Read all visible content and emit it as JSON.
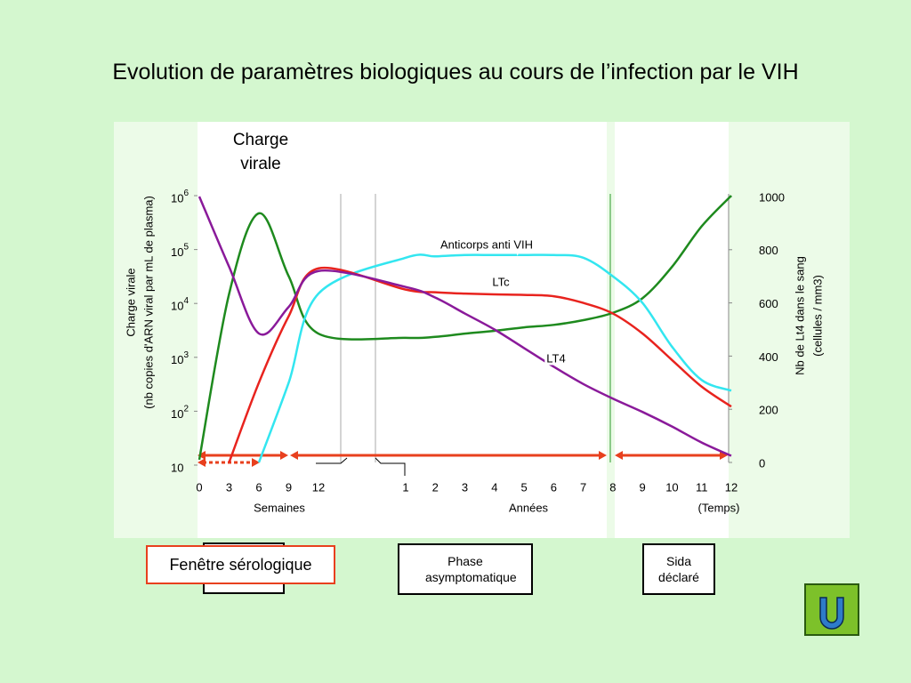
{
  "chart_data": {
    "type": "line",
    "title": "Evolution de paramètres biologiques au cours de l’infection par le VIH",
    "categories": [
      "0",
      "3",
      "6",
      "9",
      "12",
      "1",
      "2",
      "3",
      "4",
      "5",
      "6",
      "7",
      "8",
      "9",
      "10",
      "11",
      "12"
    ],
    "x_groups": [
      "Semaines",
      "Années",
      "(Temps)"
    ],
    "ylabel": [
      "Charge virale",
      "(nb copies d'ARN viral par mL de plasma)"
    ],
    "y2label": [
      "Nb de Lt4 dans le sang",
      "(cellules / mm3)"
    ],
    "log_y": true,
    "ylim": [
      10,
      1000000
    ],
    "yticks": [
      10,
      {
        "value": 100,
        "label": "10",
        "exponent": "2"
      },
      {
        "value": 1000,
        "label": "10",
        "exponent": "3"
      },
      {
        "value": 10000,
        "label": "10",
        "exponent": "4"
      },
      {
        "value": 100000,
        "label": "10",
        "exponent": "5"
      },
      {
        "value": 1000000,
        "label": "10",
        "exponent": "6"
      }
    ],
    "y2lim": [
      0,
      1000
    ],
    "y2ticks": [
      0,
      200,
      400,
      600,
      800,
      1000
    ],
    "series": [
      {
        "name": "Charge virale",
        "color": "#1e8a1e",
        "values": [
          12.6,
          15000,
          470000,
          32000,
          2750,
          2300,
          2400,
          2750,
          3100,
          3600,
          4000,
          4900,
          6700,
          12500,
          48000,
          270000,
          1000000
        ]
      },
      {
        "name": "Anticorps anti VIH",
        "color": "#33e6f0",
        "axis": "y2",
        "values": [
          null,
          null,
          0,
          300,
          635,
          770,
          775,
          780,
          780,
          780,
          780,
          770,
          700,
          600,
          435,
          310,
          270
        ]
      },
      {
        "name": "LTc",
        "color": "#e8231e",
        "axis": "y2",
        "values": [
          null,
          0,
          300,
          550,
          730,
          650,
          640,
          635,
          632,
          630,
          625,
          600,
          560,
          485,
          385,
          285,
          210
        ]
      },
      {
        "name": "LT4",
        "color": "#8a1a9a",
        "axis": "y2",
        "values": [
          1000,
          736,
          485,
          585,
          720,
          660,
          620,
          560,
          500,
          430,
          360,
          295,
          240,
          190,
          135,
          75,
          25
        ]
      }
    ],
    "phases": [
      "Fenêtre sérologique",
      "Phase asymptomatique",
      "Sida déclaré"
    ]
  }
}
